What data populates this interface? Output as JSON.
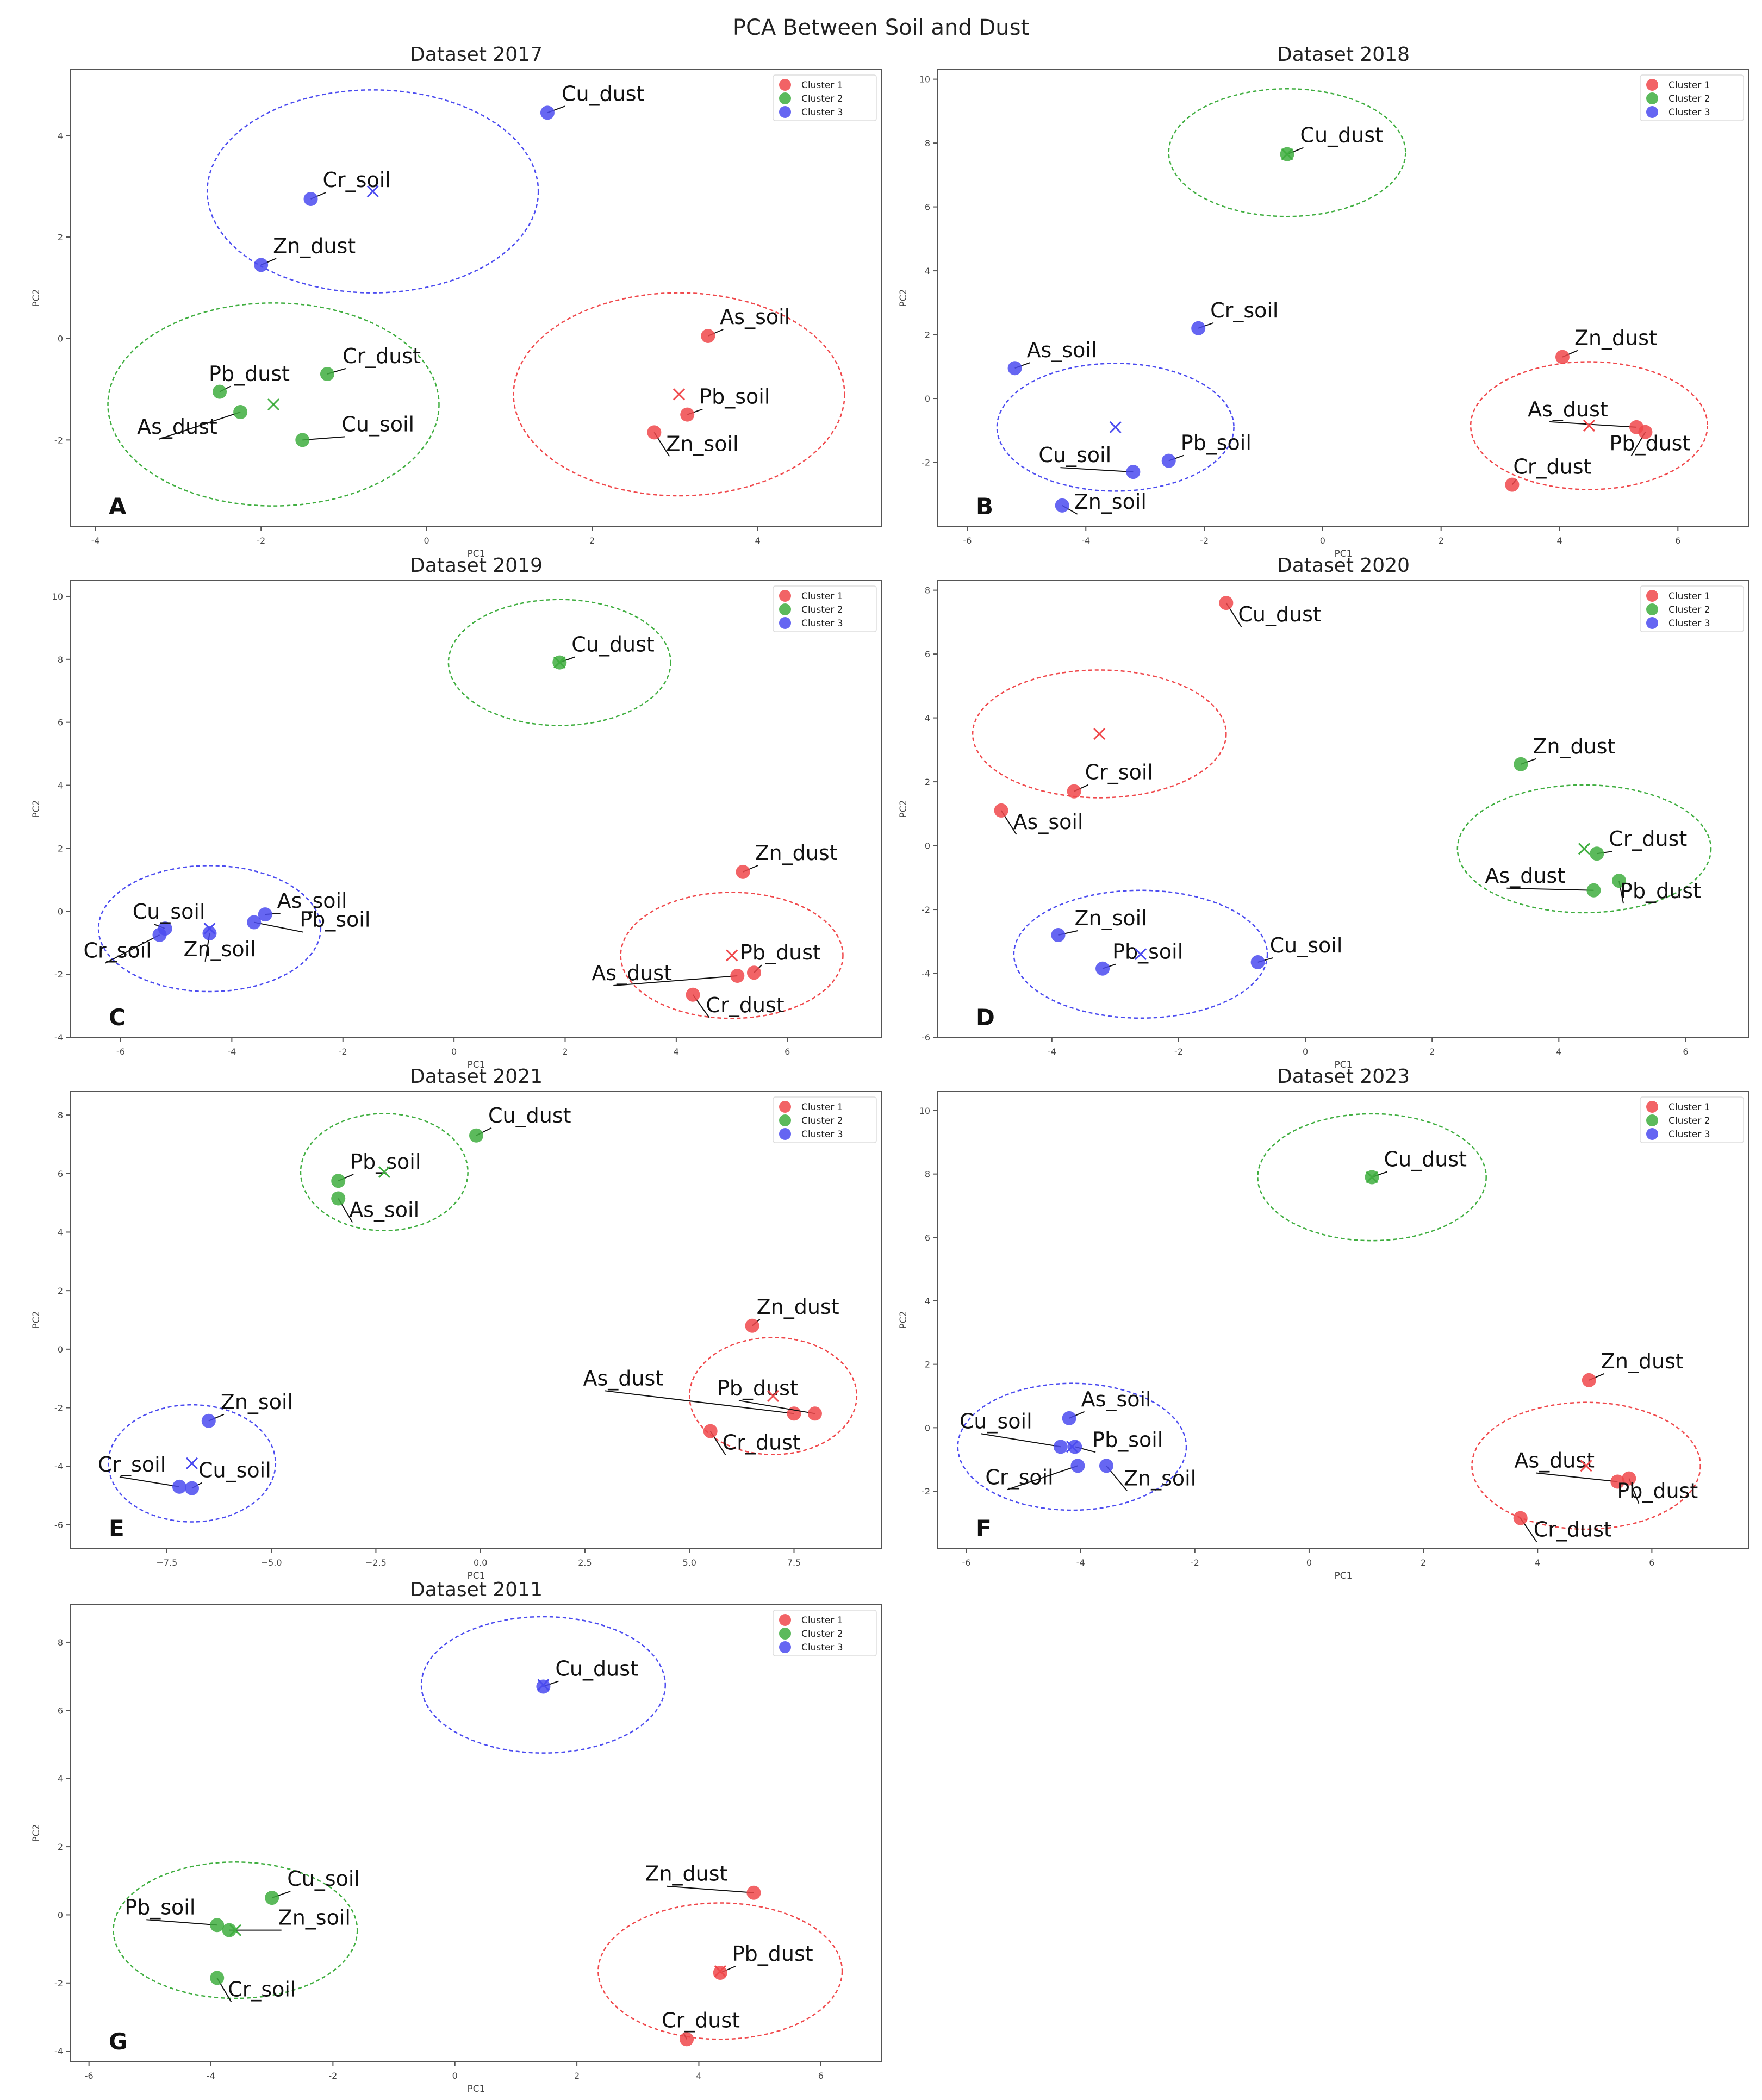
{
  "figure_title": "PCA Between Soil and Dust",
  "colors": {
    "cluster1": "#f0484b",
    "cluster2": "#3fae3f",
    "cluster3": "#4b4bf0",
    "axes": "#555555",
    "text": "#222222"
  },
  "chart_data": [
    {
      "type": "scatter",
      "panel": "A",
      "title": "Dataset 2017",
      "xlabel": "PC1",
      "ylabel": "PC2",
      "xlim": [
        -4.3,
        5.5
      ],
      "ylim": [
        -3.7,
        5.3
      ],
      "xticks": [
        "-4",
        "-2",
        "0",
        "2",
        "4"
      ],
      "xtick_values": [
        -4,
        -2,
        0,
        2,
        4
      ],
      "yticks": [
        "-2",
        "0",
        "2",
        "4"
      ],
      "ytick_values": [
        -2,
        0,
        2,
        4
      ],
      "legend": [
        "Cluster 1",
        "Cluster 2",
        "Cluster 3"
      ],
      "points": [
        {
          "label": "Cu_dust",
          "x": 1.46,
          "y": 4.45,
          "cluster": 3
        },
        {
          "label": "Cr_soil",
          "x": -1.4,
          "y": 2.75,
          "cluster": 3
        },
        {
          "label": "Zn_dust",
          "x": -2.0,
          "y": 1.45,
          "cluster": 3
        },
        {
          "label": "As_soil",
          "x": 3.4,
          "y": 0.05,
          "cluster": 1
        },
        {
          "label": "Pb_soil",
          "x": 3.15,
          "y": -1.5,
          "cluster": 1
        },
        {
          "label": "Zn_soil",
          "x": 2.75,
          "y": -1.85,
          "cluster": 1
        },
        {
          "label": "Cr_dust",
          "x": -1.2,
          "y": -0.7,
          "cluster": 2
        },
        {
          "label": "Pb_dust",
          "x": -2.5,
          "y": -1.05,
          "cluster": 2
        },
        {
          "label": "As_dust",
          "x": -2.25,
          "y": -1.45,
          "cluster": 2
        },
        {
          "label": "Cu_soil",
          "x": -1.5,
          "y": -2.0,
          "cluster": 2
        }
      ],
      "centroids": [
        {
          "x": -0.65,
          "y": 2.9,
          "cluster": 3
        },
        {
          "x": 3.05,
          "y": -1.1,
          "cluster": 1
        },
        {
          "x": -1.85,
          "y": -1.3,
          "cluster": 2
        }
      ],
      "ellipses": [
        {
          "cx": -0.65,
          "cy": 2.9,
          "rx": 2.0,
          "ry": 2.0,
          "cluster": 3
        },
        {
          "cx": 3.05,
          "cy": -1.1,
          "rx": 2.0,
          "ry": 2.0,
          "cluster": 1
        },
        {
          "cx": -1.85,
          "cy": -1.3,
          "rx": 2.0,
          "ry": 2.0,
          "cluster": 2
        }
      ]
    },
    {
      "type": "scatter",
      "panel": "B",
      "title": "Dataset 2018",
      "xlabel": "PC1",
      "ylabel": "PC2",
      "xlim": [
        -6.5,
        7.2
      ],
      "ylim": [
        -4.0,
        10.3
      ],
      "xticks": [
        "-6",
        "-4",
        "-2",
        "0",
        "2",
        "4",
        "6"
      ],
      "xtick_values": [
        -6,
        -4,
        -2,
        0,
        2,
        4,
        6
      ],
      "yticks": [
        "-2",
        "0",
        "2",
        "4",
        "6",
        "8",
        "10"
      ],
      "ytick_values": [
        -2,
        0,
        2,
        4,
        6,
        8,
        10
      ],
      "legend": [
        "Cluster 1",
        "Cluster 2",
        "Cluster 3"
      ],
      "points": [
        {
          "label": "Cu_dust",
          "x": -0.6,
          "y": 7.65,
          "cluster": 2
        },
        {
          "label": "Cr_soil",
          "x": -2.1,
          "y": 2.2,
          "cluster": 3
        },
        {
          "label": "As_soil",
          "x": -5.2,
          "y": 0.95,
          "cluster": 3
        },
        {
          "label": "Cu_soil",
          "x": -3.2,
          "y": -2.3,
          "cluster": 3
        },
        {
          "label": "Pb_soil",
          "x": -2.6,
          "y": -1.95,
          "cluster": 3
        },
        {
          "label": "Zn_soil",
          "x": -4.4,
          "y": -3.35,
          "cluster": 3
        },
        {
          "label": "Zn_dust",
          "x": 4.05,
          "y": 1.3,
          "cluster": 1
        },
        {
          "label": "As_dust",
          "x": 5.3,
          "y": -0.9,
          "cluster": 1
        },
        {
          "label": "Pb_dust",
          "x": 5.45,
          "y": -1.05,
          "cluster": 1
        },
        {
          "label": "Cr_dust",
          "x": 3.2,
          "y": -2.7,
          "cluster": 1
        }
      ],
      "centroids": [
        {
          "x": -0.6,
          "y": 7.65,
          "cluster": 2
        },
        {
          "x": -3.5,
          "y": -0.9,
          "cluster": 3
        },
        {
          "x": 4.5,
          "y": -0.85,
          "cluster": 1
        }
      ],
      "ellipses": [
        {
          "cx": -0.6,
          "cy": 7.7,
          "rx": 2.0,
          "ry": 2.0,
          "cluster": 2
        },
        {
          "cx": -3.5,
          "cy": -0.9,
          "rx": 2.0,
          "ry": 2.0,
          "cluster": 3
        },
        {
          "cx": 4.5,
          "cy": -0.85,
          "rx": 2.0,
          "ry": 2.0,
          "cluster": 1
        }
      ]
    },
    {
      "type": "scatter",
      "panel": "C",
      "title": "Dataset 2019",
      "xlabel": "PC1",
      "ylabel": "PC2",
      "xlim": [
        -6.9,
        7.7
      ],
      "ylim": [
        -4.0,
        10.5
      ],
      "xticks": [
        "-6",
        "-4",
        "-2",
        "0",
        "2",
        "4",
        "6"
      ],
      "xtick_values": [
        -6,
        -4,
        -2,
        0,
        2,
        4,
        6
      ],
      "yticks": [
        "-4",
        "-2",
        "0",
        "2",
        "4",
        "6",
        "8",
        "10"
      ],
      "ytick_values": [
        -4,
        -2,
        0,
        2,
        4,
        6,
        8,
        10
      ],
      "legend": [
        "Cluster 1",
        "Cluster 2",
        "Cluster 3"
      ],
      "points": [
        {
          "label": "Cu_dust",
          "x": 1.9,
          "y": 7.9,
          "cluster": 2
        },
        {
          "label": "Zn_dust",
          "x": 5.2,
          "y": 1.25,
          "cluster": 1
        },
        {
          "label": "As_soil",
          "x": -3.4,
          "y": -0.1,
          "cluster": 3
        },
        {
          "label": "Pb_soil",
          "x": -3.6,
          "y": -0.35,
          "cluster": 3
        },
        {
          "label": "Cu_soil",
          "x": -5.2,
          "y": -0.55,
          "cluster": 3
        },
        {
          "label": "Cr_soil",
          "x": -5.3,
          "y": -0.75,
          "cluster": 3
        },
        {
          "label": "Zn_soil",
          "x": -4.4,
          "y": -0.7,
          "cluster": 3
        },
        {
          "label": "Pb_dust",
          "x": 5.4,
          "y": -1.95,
          "cluster": 1
        },
        {
          "label": "As_dust",
          "x": 5.1,
          "y": -2.05,
          "cluster": 1
        },
        {
          "label": "Cr_dust",
          "x": 4.3,
          "y": -2.65,
          "cluster": 1
        }
      ],
      "centroids": [
        {
          "x": 1.9,
          "y": 7.9,
          "cluster": 2
        },
        {
          "x": -4.4,
          "y": -0.55,
          "cluster": 3
        },
        {
          "x": 5.0,
          "y": -1.4,
          "cluster": 1
        }
      ],
      "ellipses": [
        {
          "cx": 1.9,
          "cy": 7.9,
          "rx": 2.0,
          "ry": 2.0,
          "cluster": 2
        },
        {
          "cx": -4.4,
          "cy": -0.55,
          "rx": 2.0,
          "ry": 2.0,
          "cluster": 3
        },
        {
          "cx": 5.0,
          "cy": -1.4,
          "rx": 2.0,
          "ry": 2.0,
          "cluster": 1
        }
      ]
    },
    {
      "type": "scatter",
      "panel": "D",
      "title": "Dataset 2020",
      "xlabel": "PC1",
      "ylabel": "PC2",
      "xlim": [
        -5.8,
        7.0
      ],
      "ylim": [
        -6.0,
        8.3
      ],
      "xticks": [
        "-4",
        "-2",
        "0",
        "2",
        "4",
        "6"
      ],
      "xtick_values": [
        -4,
        -2,
        0,
        2,
        4,
        6
      ],
      "yticks": [
        "-6",
        "-4",
        "-2",
        "0",
        "2",
        "4",
        "6",
        "8"
      ],
      "ytick_values": [
        -6,
        -4,
        -2,
        0,
        2,
        4,
        6,
        8
      ],
      "legend": [
        "Cluster 1",
        "Cluster 2",
        "Cluster 3"
      ],
      "points": [
        {
          "label": "Cu_dust",
          "x": -1.25,
          "y": 7.6,
          "cluster": 1
        },
        {
          "label": "Cr_soil",
          "x": -3.65,
          "y": 1.7,
          "cluster": 1
        },
        {
          "label": "As_soil",
          "x": -4.8,
          "y": 1.1,
          "cluster": 1
        },
        {
          "label": "Zn_dust",
          "x": 3.4,
          "y": 2.55,
          "cluster": 2
        },
        {
          "label": "Cr_dust",
          "x": 4.6,
          "y": -0.25,
          "cluster": 2
        },
        {
          "label": "As_dust",
          "x": 4.55,
          "y": -1.4,
          "cluster": 2
        },
        {
          "label": "Pb_dust",
          "x": 4.95,
          "y": -1.1,
          "cluster": 2
        },
        {
          "label": "Zn_soil",
          "x": -3.9,
          "y": -2.8,
          "cluster": 3
        },
        {
          "label": "Pb_soil",
          "x": -3.2,
          "y": -3.85,
          "cluster": 3
        },
        {
          "label": "Cu_soil",
          "x": -0.75,
          "y": -3.65,
          "cluster": 3
        }
      ],
      "centroids": [
        {
          "x": -3.25,
          "y": 3.5,
          "cluster": 1
        },
        {
          "x": 4.4,
          "y": -0.1,
          "cluster": 2
        },
        {
          "x": -2.6,
          "y": -3.4,
          "cluster": 3
        }
      ],
      "ellipses": [
        {
          "cx": -3.25,
          "cy": 3.5,
          "rx": 2.0,
          "ry": 2.0,
          "cluster": 1
        },
        {
          "cx": 4.4,
          "cy": -0.1,
          "rx": 2.0,
          "ry": 2.0,
          "cluster": 2
        },
        {
          "cx": -2.6,
          "cy": -3.4,
          "rx": 2.0,
          "ry": 2.0,
          "cluster": 3
        }
      ]
    },
    {
      "type": "scatter",
      "panel": "E",
      "title": "Dataset 2021",
      "xlabel": "PC1",
      "ylabel": "PC2",
      "xlim": [
        -9.8,
        9.6
      ],
      "ylim": [
        -6.8,
        8.8
      ],
      "xticks": [
        "−7.5",
        "−5.0",
        "−2.5",
        "0.0",
        "2.5",
        "5.0",
        "7.5"
      ],
      "xtick_values": [
        -7.5,
        -5.0,
        -2.5,
        0.0,
        2.5,
        5.0,
        7.5
      ],
      "yticks": [
        "-6",
        "-4",
        "-2",
        "0",
        "2",
        "4",
        "6",
        "8"
      ],
      "ytick_values": [
        -6,
        -4,
        -2,
        0,
        2,
        4,
        6,
        8
      ],
      "legend": [
        "Cluster 1",
        "Cluster 2",
        "Cluster 3"
      ],
      "points": [
        {
          "label": "Cu_dust",
          "x": -0.1,
          "y": 7.3,
          "cluster": 2
        },
        {
          "label": "Pb_soil",
          "x": -3.4,
          "y": 5.75,
          "cluster": 2
        },
        {
          "label": "As_soil",
          "x": -3.4,
          "y": 5.15,
          "cluster": 2
        },
        {
          "label": "Zn_dust",
          "x": 6.5,
          "y": 0.8,
          "cluster": 1
        },
        {
          "label": "As_dust",
          "x": 7.5,
          "y": -2.2,
          "cluster": 1
        },
        {
          "label": "Pb_dust",
          "x": 8.0,
          "y": -2.2,
          "cluster": 1
        },
        {
          "label": "Cr_dust",
          "x": 5.5,
          "y": -2.8,
          "cluster": 1
        },
        {
          "label": "Zn_soil",
          "x": -6.5,
          "y": -2.45,
          "cluster": 3
        },
        {
          "label": "Cr_soil",
          "x": -7.2,
          "y": -4.7,
          "cluster": 3
        },
        {
          "label": "Cu_soil",
          "x": -6.9,
          "y": -4.75,
          "cluster": 3
        }
      ],
      "centroids": [
        {
          "x": -2.3,
          "y": 6.05,
          "cluster": 2
        },
        {
          "x": 7.0,
          "y": -1.6,
          "cluster": 1
        },
        {
          "x": -6.9,
          "y": -3.9,
          "cluster": 3
        }
      ],
      "ellipses": [
        {
          "cx": -2.3,
          "cy": 6.05,
          "rx": 2.0,
          "ry": 2.0,
          "cluster": 2
        },
        {
          "cx": 7.0,
          "cy": -1.6,
          "rx": 2.0,
          "ry": 2.0,
          "cluster": 1
        },
        {
          "cx": -6.9,
          "cy": -3.9,
          "rx": 2.0,
          "ry": 2.0,
          "cluster": 3
        }
      ]
    },
    {
      "type": "scatter",
      "panel": "F",
      "title": "Dataset 2023",
      "xlabel": "PC1",
      "ylabel": "PC2",
      "xlim": [
        -6.5,
        7.7
      ],
      "ylim": [
        -3.8,
        10.6
      ],
      "xticks": [
        "-6",
        "-4",
        "-2",
        "0",
        "2",
        "4",
        "6"
      ],
      "xtick_values": [
        -6,
        -4,
        -2,
        0,
        2,
        4,
        6
      ],
      "yticks": [
        "-2",
        "0",
        "2",
        "4",
        "6",
        "8",
        "10"
      ],
      "ytick_values": [
        -2,
        0,
        2,
        4,
        6,
        8,
        10
      ],
      "legend": [
        "Cluster 1",
        "Cluster 2",
        "Cluster 3"
      ],
      "points": [
        {
          "label": "Cu_dust",
          "x": 1.1,
          "y": 7.9,
          "cluster": 2
        },
        {
          "label": "Zn_dust",
          "x": 4.9,
          "y": 1.5,
          "cluster": 1
        },
        {
          "label": "As_soil",
          "x": -4.2,
          "y": 0.3,
          "cluster": 3
        },
        {
          "label": "Cu_soil",
          "x": -4.35,
          "y": -0.6,
          "cluster": 3
        },
        {
          "label": "Pb_soil",
          "x": -4.1,
          "y": -0.6,
          "cluster": 3
        },
        {
          "label": "Cr_soil",
          "x": -4.05,
          "y": -1.2,
          "cluster": 3
        },
        {
          "label": "Zn_soil",
          "x": -3.55,
          "y": -1.2,
          "cluster": 3
        },
        {
          "label": "As_dust",
          "x": 5.4,
          "y": -1.7,
          "cluster": 1
        },
        {
          "label": "Pb_dust",
          "x": 5.6,
          "y": -1.6,
          "cluster": 1
        },
        {
          "label": "Cr_dust",
          "x": 3.7,
          "y": -2.85,
          "cluster": 1
        }
      ],
      "centroids": [
        {
          "x": 1.1,
          "y": 7.9,
          "cluster": 2
        },
        {
          "x": -4.15,
          "y": -0.6,
          "cluster": 3
        },
        {
          "x": 4.85,
          "y": -1.2,
          "cluster": 1
        }
      ],
      "ellipses": [
        {
          "cx": 1.1,
          "cy": 7.9,
          "rx": 2.0,
          "ry": 2.0,
          "cluster": 2
        },
        {
          "cx": -4.15,
          "cy": -0.6,
          "rx": 2.0,
          "ry": 2.0,
          "cluster": 3
        },
        {
          "cx": 4.85,
          "cy": -1.2,
          "rx": 2.0,
          "ry": 2.0,
          "cluster": 1
        }
      ]
    },
    {
      "type": "scatter",
      "panel": "G",
      "title": "Dataset 2011",
      "xlabel": "PC1",
      "ylabel": "PC2",
      "xlim": [
        -6.3,
        7.0
      ],
      "ylim": [
        -4.3,
        9.1
      ],
      "xticks": [
        "-6",
        "-4",
        "-2",
        "0",
        "2",
        "4",
        "6"
      ],
      "xtick_values": [
        -6,
        -4,
        -2,
        0,
        2,
        4,
        6
      ],
      "yticks": [
        "-4",
        "-2",
        "0",
        "2",
        "4",
        "6",
        "8"
      ],
      "ytick_values": [
        -4,
        -2,
        0,
        2,
        4,
        6,
        8
      ],
      "legend": [
        "Cluster 1",
        "Cluster 2",
        "Cluster 3"
      ],
      "points": [
        {
          "label": "Cu_dust",
          "x": 1.45,
          "y": 6.7,
          "cluster": 3
        },
        {
          "label": "Cu_soil",
          "x": -3.0,
          "y": 0.5,
          "cluster": 2
        },
        {
          "label": "Pb_soil",
          "x": -3.9,
          "y": -0.3,
          "cluster": 2
        },
        {
          "label": "Zn_soil",
          "x": -3.7,
          "y": -0.45,
          "cluster": 2
        },
        {
          "label": "Cr_soil",
          "x": -3.9,
          "y": -1.85,
          "cluster": 2
        },
        {
          "label": "Zn_dust",
          "x": 4.9,
          "y": 0.65,
          "cluster": 1
        },
        {
          "label": "Pb_dust",
          "x": 4.35,
          "y": -1.7,
          "cluster": 1
        },
        {
          "label": "Cr_dust",
          "x": 3.8,
          "y": -3.65,
          "cluster": 1
        }
      ],
      "centroids": [
        {
          "x": 1.45,
          "y": 6.75,
          "cluster": 3
        },
        {
          "x": -3.6,
          "y": -0.45,
          "cluster": 2
        },
        {
          "x": 4.35,
          "y": -1.65,
          "cluster": 1
        }
      ],
      "ellipses": [
        {
          "cx": 1.45,
          "cy": 6.75,
          "rx": 2.0,
          "ry": 2.0,
          "cluster": 3
        },
        {
          "cx": -3.6,
          "cy": -0.45,
          "rx": 2.0,
          "ry": 2.0,
          "cluster": 2
        },
        {
          "cx": 4.35,
          "cy": -1.65,
          "rx": 2.0,
          "ry": 2.0,
          "cluster": 1
        }
      ]
    }
  ]
}
